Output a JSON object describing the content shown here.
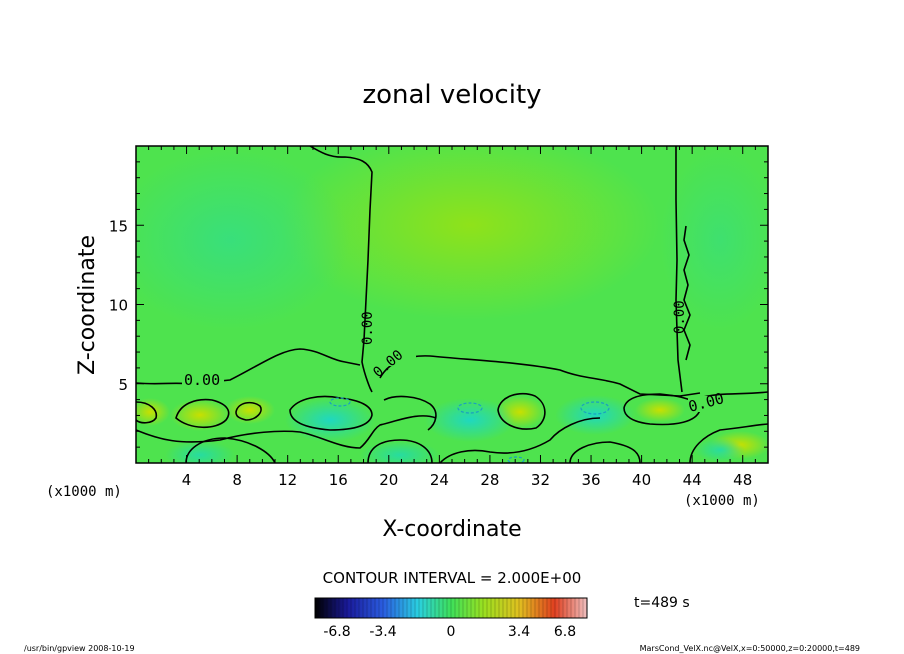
{
  "chart_data": {
    "type": "heatmap",
    "title": "zonal velocity",
    "xlabel": "X-coordinate",
    "ylabel": "Z-coordinate",
    "x_unit_left": "(x1000 m)",
    "x_unit_right": "(x1000 m)",
    "z_unit": "(x1000 m)",
    "xlim": [
      0,
      50
    ],
    "ylim": [
      0,
      20
    ],
    "x_ticks": [
      "4",
      "8",
      "12",
      "16",
      "20",
      "24",
      "28",
      "32",
      "36",
      "40",
      "44",
      "48"
    ],
    "y_ticks": [
      "5",
      "10",
      "15"
    ],
    "contour_interval": "CONTOUR INTERVAL = 2.000E+00",
    "contour_labels": [
      "0.00",
      "0.00",
      "0.00",
      "0.00",
      "0.00"
    ],
    "colorbar": {
      "ticks": [
        "-6.8",
        "-3.4",
        "0",
        "3.4",
        "6.8"
      ],
      "range": [
        -6.8,
        6.8
      ]
    },
    "time_label": "t=489  s",
    "footer_left": "/usr/bin/gpview   2008-10-19",
    "footer_right": "MarsCond_VelX.nc@VelX,x=0:50000,z=0:20000,t=489",
    "colors": {
      "background_field": "#4ee34e",
      "positive_region": "#8ce21e",
      "negative_region": "#28e08c"
    }
  }
}
